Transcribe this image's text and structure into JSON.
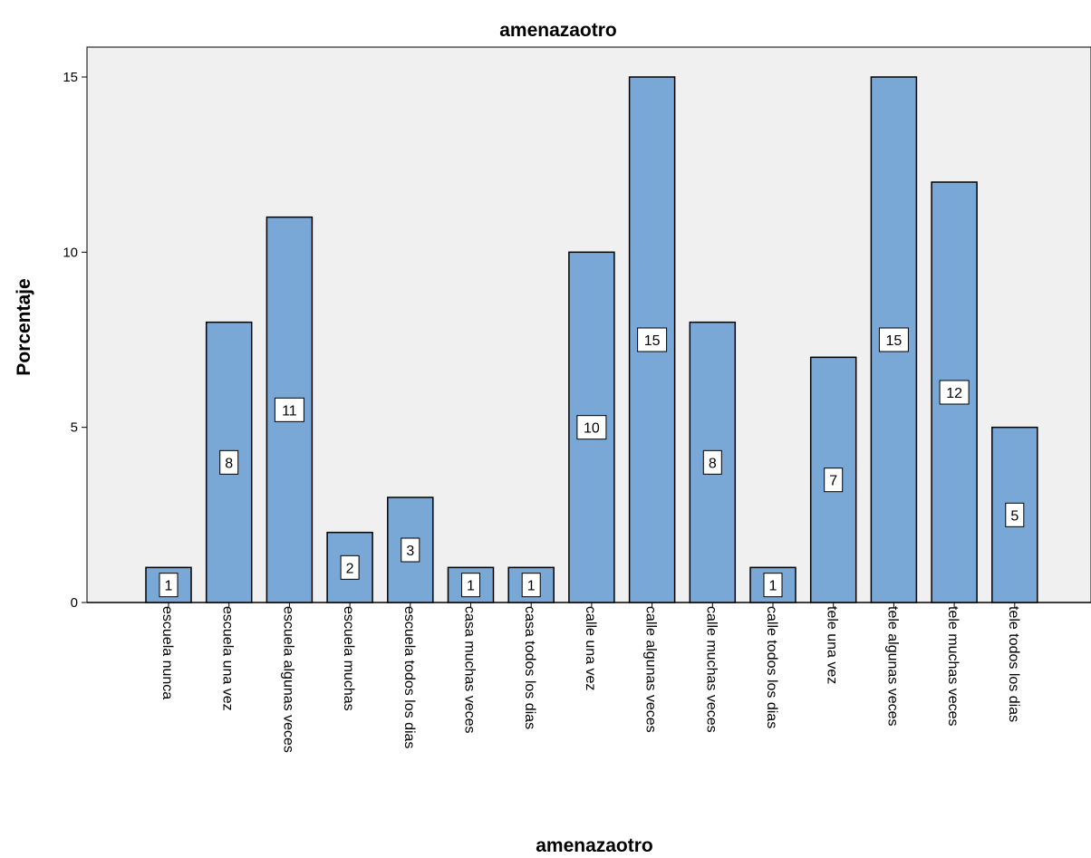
{
  "chart_data": {
    "type": "bar",
    "title": "amenazaotro",
    "xlabel": "amenazaotro",
    "ylabel": "Porcentaje",
    "ylim": [
      0,
      15
    ],
    "yticks": [
      0,
      5,
      10,
      15
    ],
    "grid": false,
    "categories": [
      "escuela nunca",
      "escuela una vez",
      "escuela algunas veces",
      "escuela muchas",
      "escuela todos los dias",
      "casa muchas veces",
      "casa todos los dias",
      "calle una vez",
      "calle algunas veces",
      "calle muchas veces",
      "calle todos los dias",
      "tele una vez",
      "tele algunas veces",
      "tele muchas veces",
      "tele todos los dias"
    ],
    "values": [
      1,
      8,
      11,
      2,
      3,
      1,
      1,
      10,
      15,
      8,
      1,
      7,
      15,
      12,
      5
    ],
    "data_labels": [
      "1",
      "8",
      "11",
      "2",
      "3",
      "1",
      "1",
      "10",
      "15",
      "8",
      "1",
      "7",
      "15",
      "12",
      "5"
    ],
    "colors": {
      "bar_fill": "#7aa8d6",
      "bar_stroke": "#000000",
      "plot_background": "#f0f0f0",
      "label_box": "#ffffff"
    }
  }
}
